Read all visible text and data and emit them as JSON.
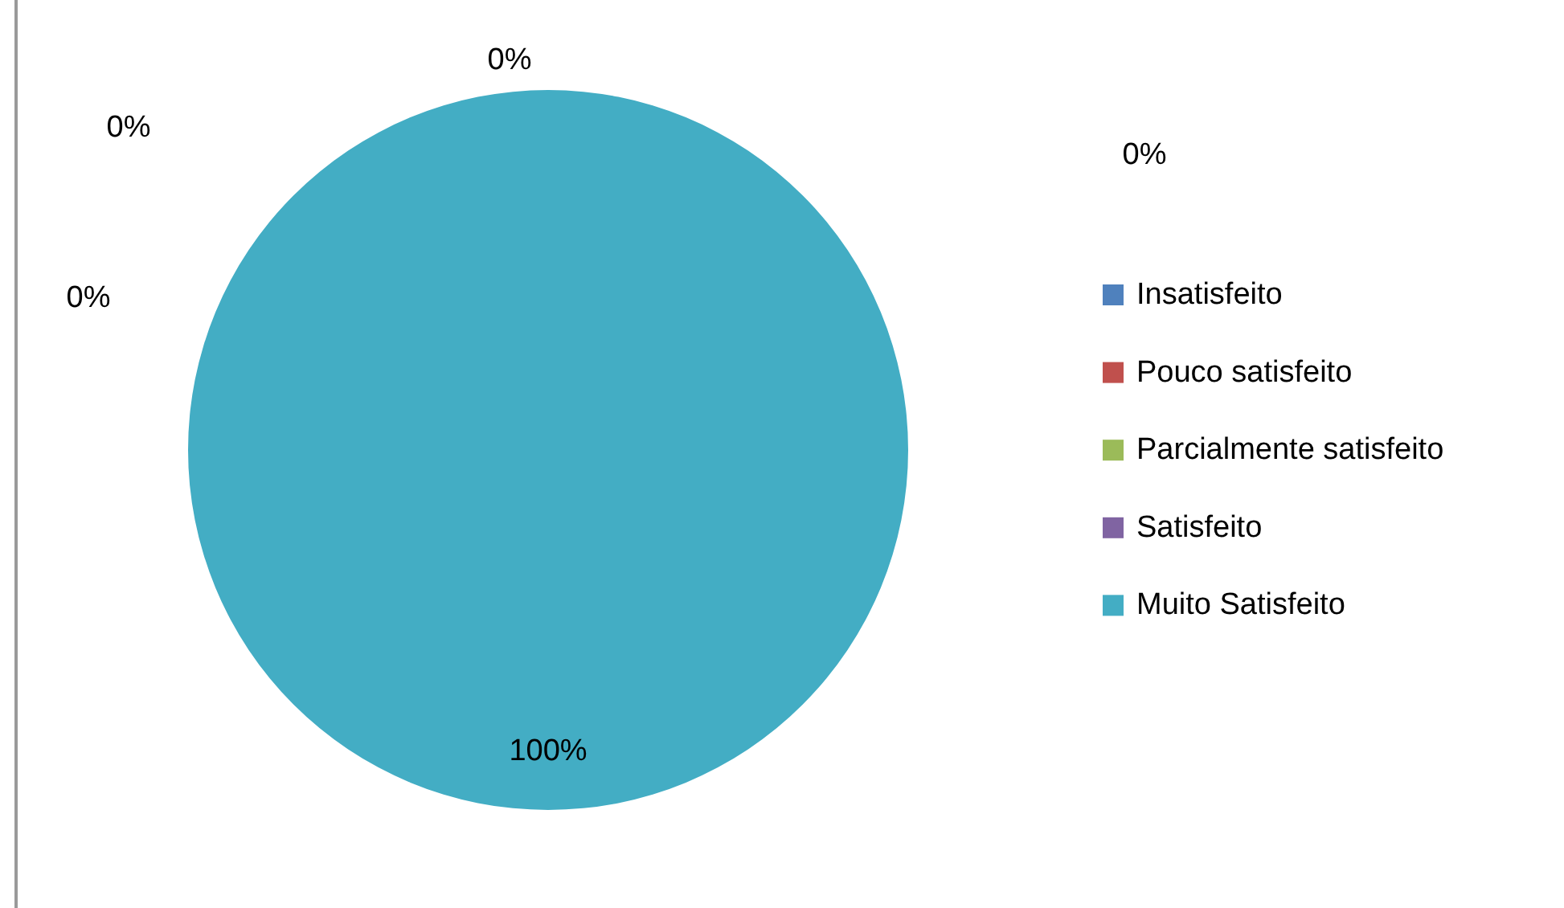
{
  "chart_data": {
    "type": "pie",
    "categories": [
      "Insatisfeito",
      "Pouco satisfeito",
      "Parcialmente satisfeito",
      "Satisfeito",
      "Muito Satisfeito"
    ],
    "values": [
      0,
      0,
      0,
      0,
      100
    ],
    "colors": [
      "#4f81bd",
      "#c0504d",
      "#9bbb59",
      "#8064a2",
      "#43adc4"
    ],
    "value_labels": [
      "0%",
      "0%",
      "0%",
      "0%",
      "100%"
    ],
    "legend": "right"
  }
}
